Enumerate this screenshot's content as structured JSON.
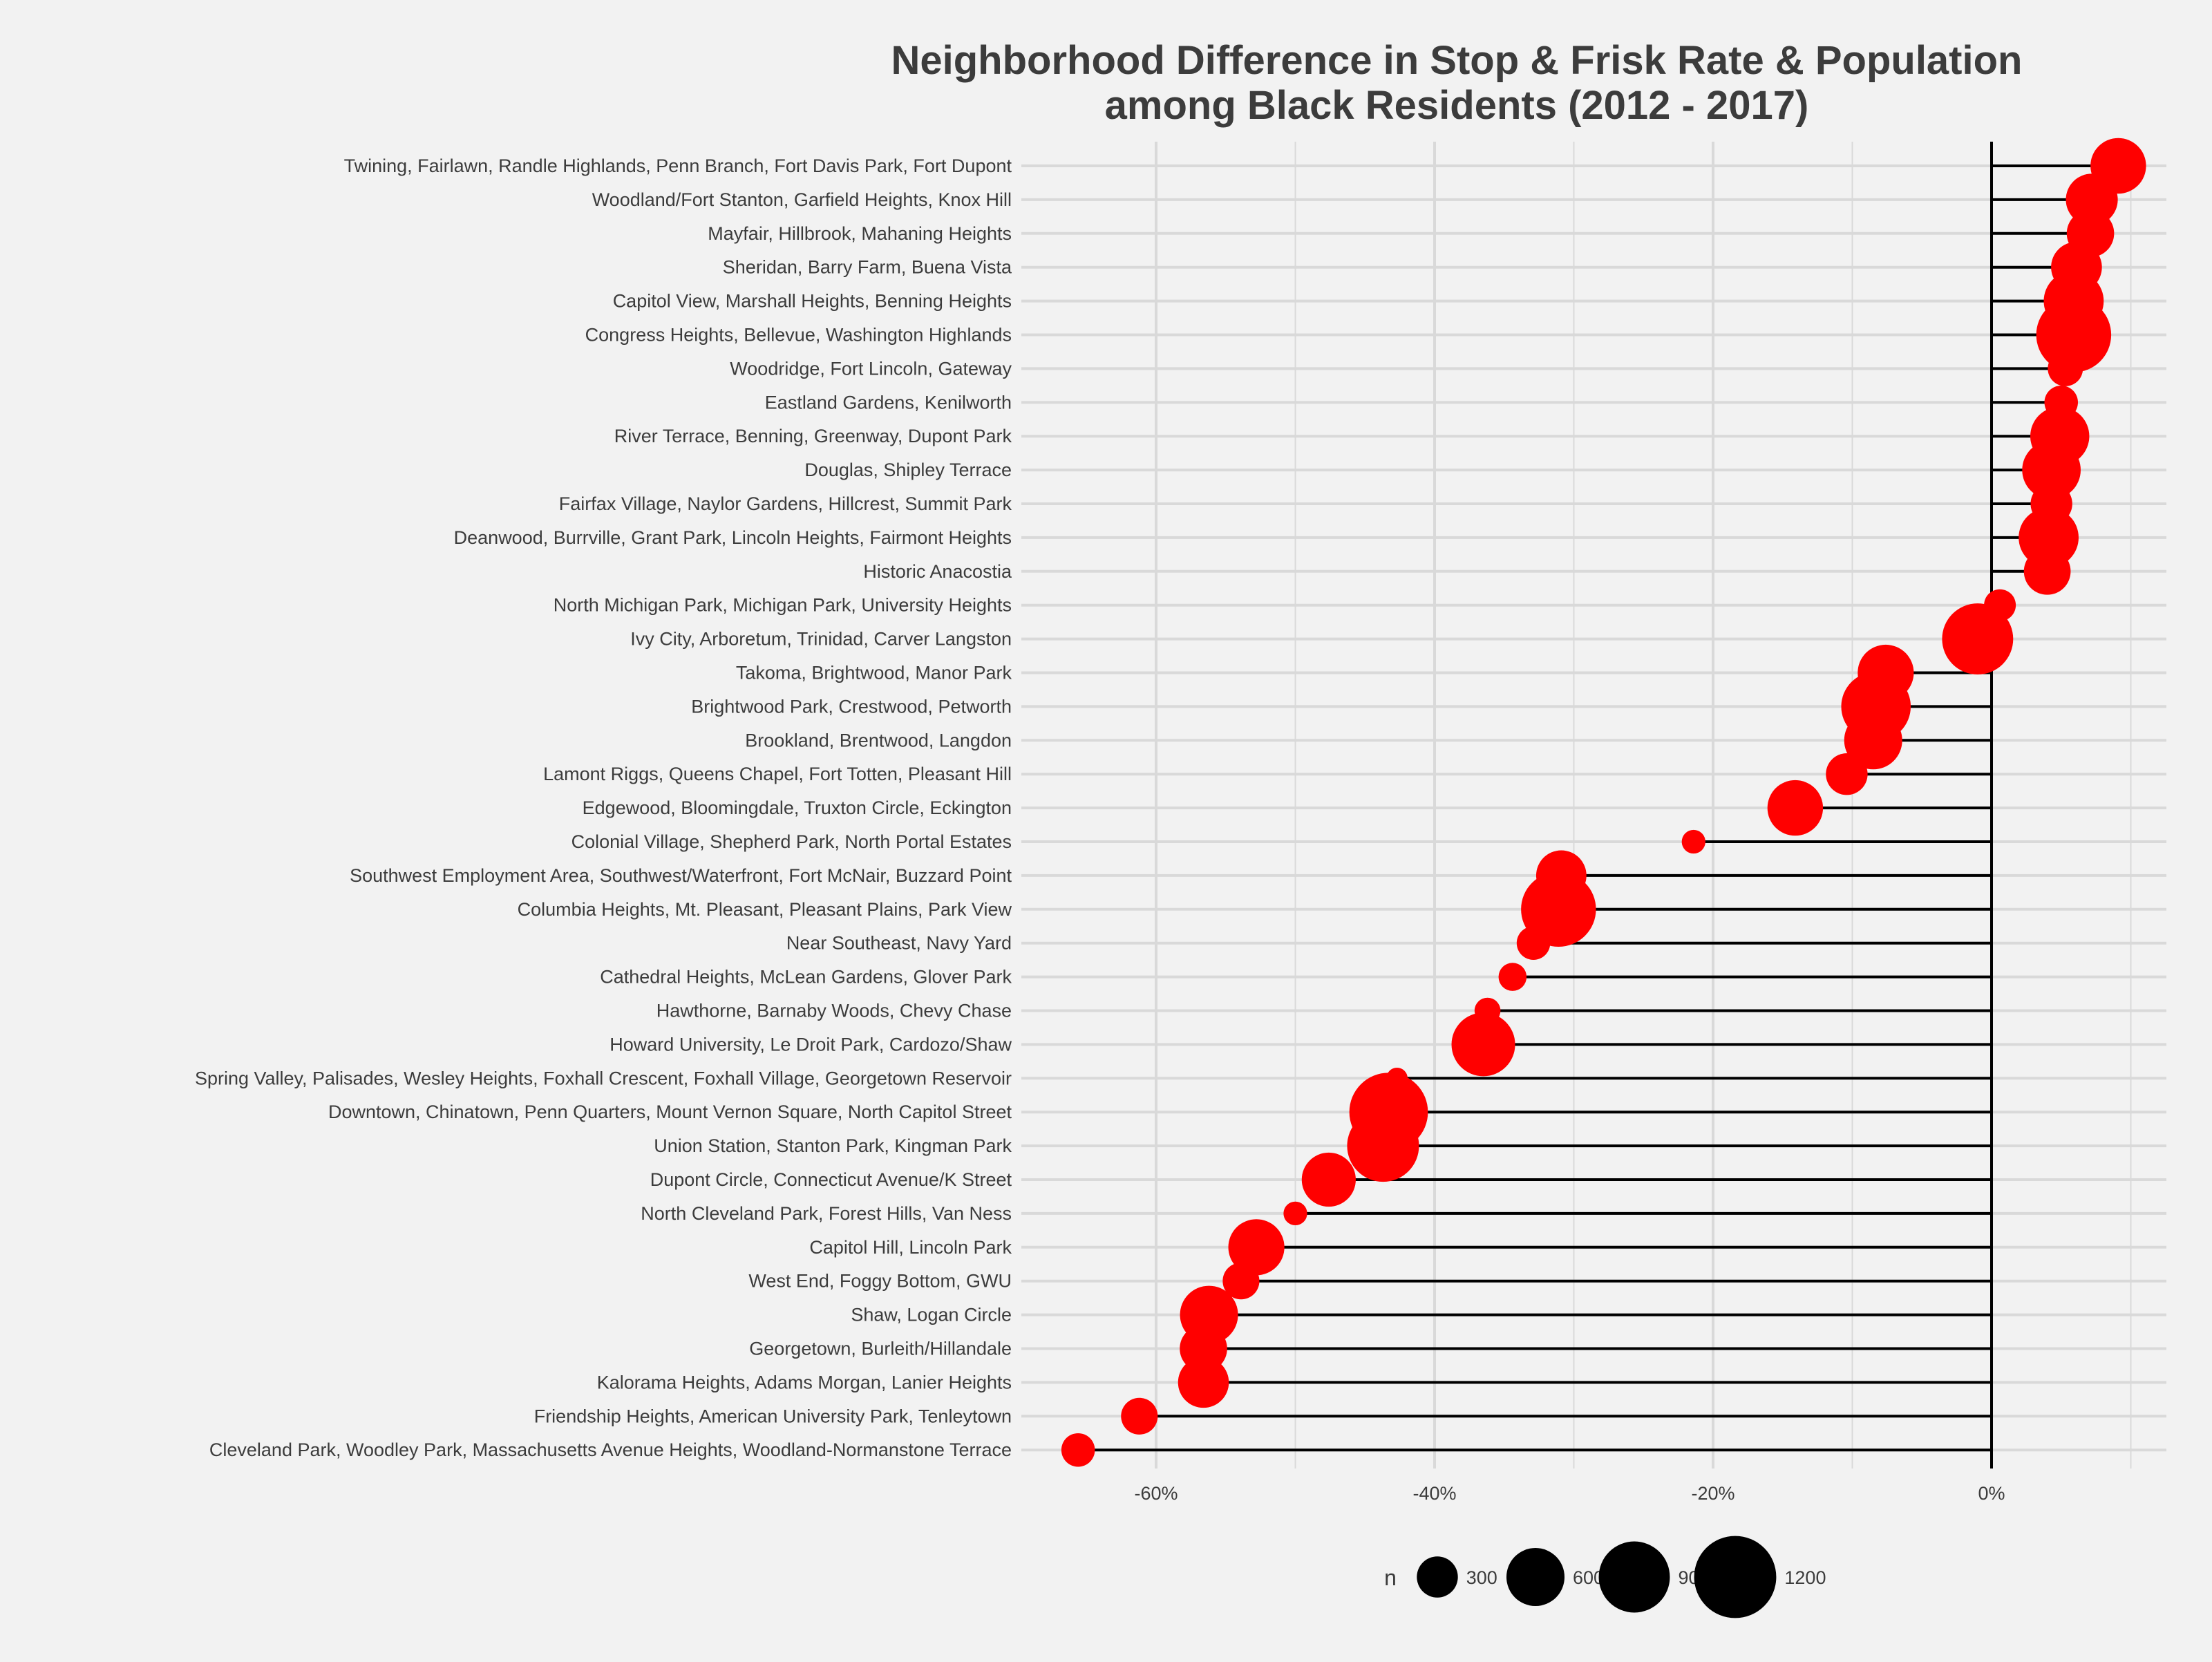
{
  "chart_data": {
    "type": "scatter",
    "title": [
      "Neighborhood Difference in Stop & Frisk Rate & Population",
      "among Black Residents (2012 - 2017)"
    ],
    "xlabel": "",
    "ylabel": "",
    "xlim": [
      -0.69,
      0.13
    ],
    "x_ticks": [
      -0.6,
      -0.4,
      -0.2,
      0
    ],
    "x_tick_labels": [
      "-60%",
      "-40%",
      "-20%",
      "0%"
    ],
    "grid": true,
    "legend": {
      "title": "n",
      "placement": "bottom",
      "sizes": [
        300,
        600,
        900,
        1200
      ],
      "labels": [
        "300",
        "600",
        "900",
        "1200"
      ]
    },
    "colors": {
      "point": "#ff0000",
      "segment": "#000000",
      "grid": "#d9d9d9",
      "background": "#f2f2f2",
      "text": "#3c3c3c"
    },
    "categories": [
      "Twining, Fairlawn, Randle Highlands, Penn Branch, Fort Davis Park, Fort Dupont",
      "Woodland/Fort Stanton, Garfield Heights, Knox Hill",
      "Mayfair, Hillbrook, Mahaning Heights",
      "Sheridan, Barry Farm, Buena Vista",
      "Capitol View, Marshall Heights, Benning Heights",
      "Congress Heights, Bellevue, Washington Highlands",
      "Woodridge, Fort Lincoln, Gateway",
      "Eastland Gardens, Kenilworth",
      "River Terrace, Benning, Greenway, Dupont Park",
      "Douglas, Shipley Terrace",
      "Fairfax Village, Naylor Gardens, Hillcrest, Summit Park",
      "Deanwood, Burrville, Grant Park, Lincoln Heights, Fairmont Heights",
      "Historic Anacostia",
      "North Michigan Park, Michigan Park, University Heights",
      "Ivy City, Arboretum, Trinidad, Carver Langston",
      "Takoma, Brightwood, Manor Park",
      "Brightwood Park, Crestwood, Petworth",
      "Brookland, Brentwood, Langdon",
      "Lamont Riggs, Queens Chapel, Fort Totten, Pleasant Hill",
      "Edgewood, Bloomingdale, Truxton Circle, Eckington",
      "Colonial Village, Shepherd Park, North Portal Estates",
      "Southwest Employment Area, Southwest/Waterfront, Fort McNair, Buzzard Point",
      "Columbia Heights, Mt. Pleasant, Pleasant Plains, Park View",
      "Near Southeast, Navy Yard",
      "Cathedral Heights, McLean Gardens, Glover Park",
      "Hawthorne, Barnaby Woods, Chevy Chase",
      "Howard University, Le Droit Park, Cardozo/Shaw",
      "Spring Valley, Palisades, Wesley Heights, Foxhall Crescent, Foxhall Village, Georgetown Reservoir",
      "Downtown, Chinatown, Penn Quarters, Mount Vernon Square, North Capitol Street",
      "Union Station, Stanton Park, Kingman Park",
      "Dupont Circle, Connecticut Avenue/K Street",
      "North Cleveland Park, Forest Hills, Van Ness",
      "Capitol Hill, Lincoln Park",
      "West End, Foggy Bottom, GWU",
      "Shaw, Logan Circle",
      "Georgetown, Burleith/Hillandale",
      "Kalorama Heights, Adams Morgan, Lanier Heights",
      "Friendship Heights, American University Park, Tenleytown",
      "Cleveland Park, Woodley Park, Massachusetts Avenue Heights, Woodland-Normanstone Terrace"
    ],
    "series": [
      {
        "values": [
          0.091,
          0.072,
          0.071,
          0.061,
          0.059,
          0.059,
          0.053,
          0.05,
          0.049,
          0.043,
          0.043,
          0.041,
          0.04,
          0.006,
          -0.01,
          -0.076,
          -0.083,
          -0.085,
          -0.104,
          -0.141,
          -0.214,
          -0.309,
          -0.311,
          -0.329,
          -0.344,
          -0.362,
          -0.365,
          -0.427,
          -0.433,
          -0.437,
          -0.476,
          -0.5,
          -0.528,
          -0.539,
          -0.562,
          -0.566,
          -0.566,
          -0.612,
          -0.656
        ],
        "n": [
          550,
          480,
          400,
          460,
          640,
          1000,
          220,
          200,
          620,
          610,
          310,
          640,
          390,
          180,
          900,
          560,
          860,
          600,
          310,
          550,
          100,
          450,
          1000,
          200,
          140,
          120,
          720,
          80,
          1100,
          920,
          520,
          100,
          560,
          240,
          600,
          400,
          460,
          240,
          200
        ]
      }
    ]
  }
}
